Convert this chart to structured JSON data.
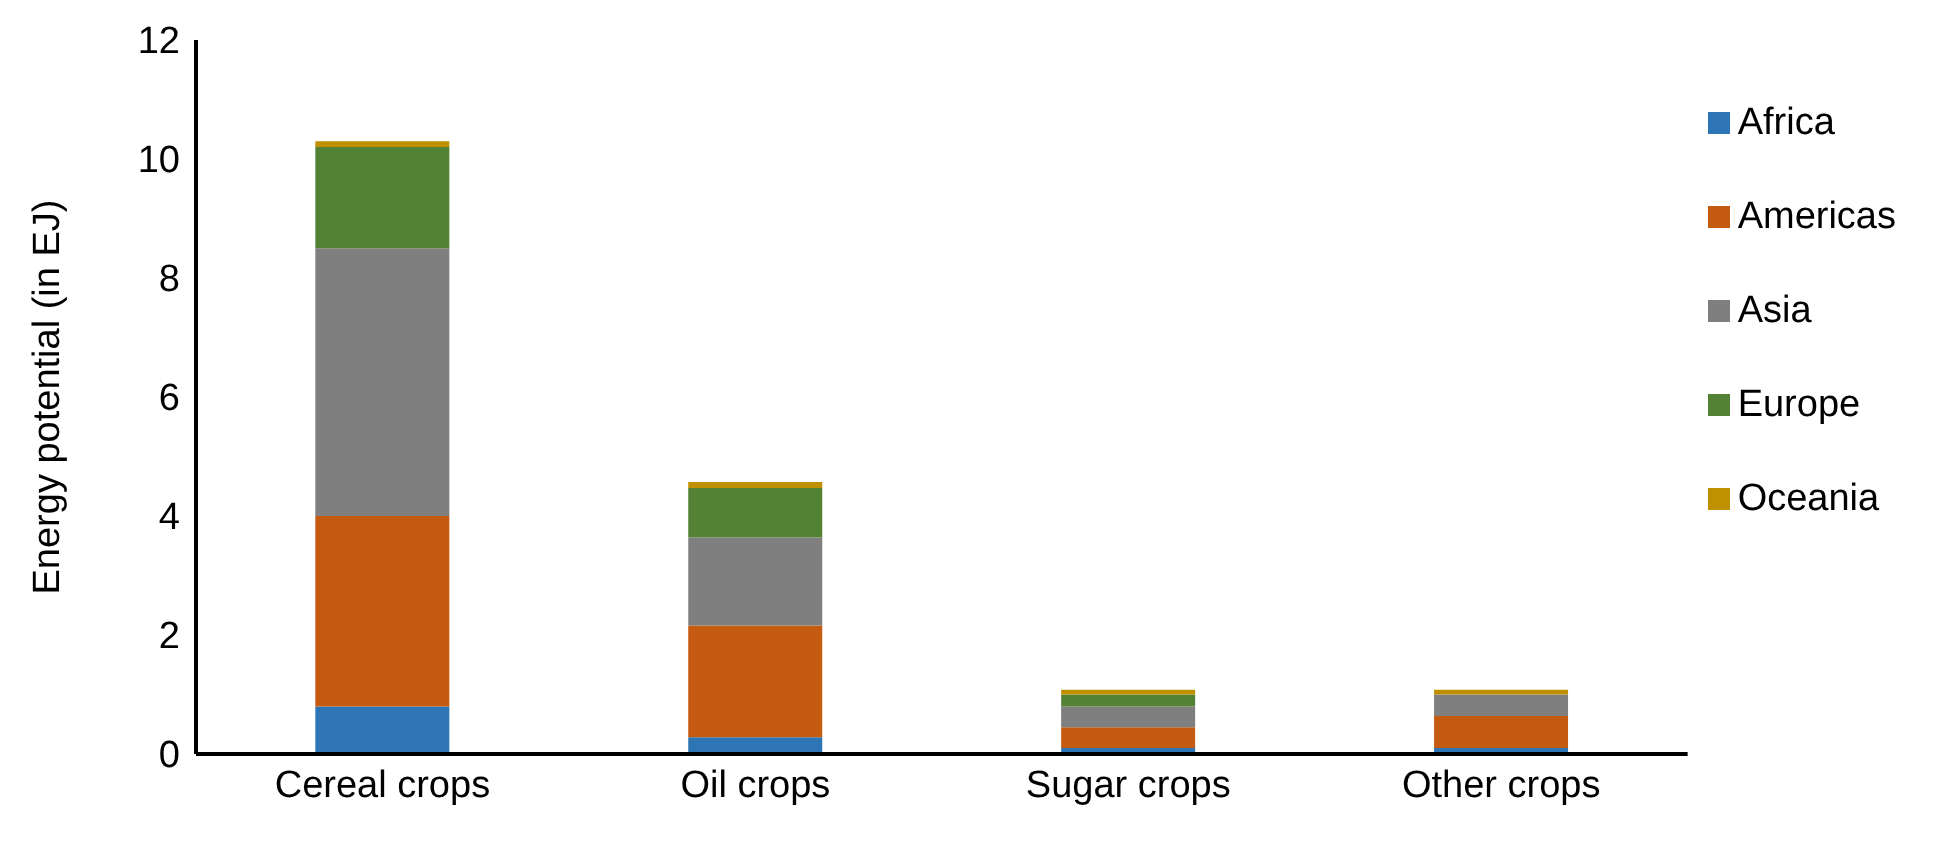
{
  "chart_data": {
    "type": "bar",
    "stacked": true,
    "ylabel": "Energy potential (in EJ)",
    "categories": [
      "Cereal crops",
      "Oil crops",
      "Sugar crops",
      "Other crops"
    ],
    "series": [
      {
        "name": "Africa",
        "color": "#2e75b6",
        "values": [
          0.8,
          0.28,
          0.1,
          0.1
        ]
      },
      {
        "name": "Americas",
        "color": "#c55a11",
        "values": [
          3.2,
          1.88,
          0.35,
          0.54
        ]
      },
      {
        "name": "Asia",
        "color": "#7f7f7f",
        "values": [
          4.5,
          1.48,
          0.35,
          0.36
        ]
      },
      {
        "name": "Europe",
        "color": "#548235",
        "values": [
          1.7,
          0.83,
          0.2,
          0
        ]
      },
      {
        "name": "Oceania",
        "color": "#bf9000",
        "values": [
          0.1,
          0.1,
          0.08,
          0.08
        ]
      }
    ],
    "ylim": [
      0,
      12
    ],
    "yticks": [
      0,
      2,
      4,
      6,
      8,
      10,
      12
    ],
    "grid": false,
    "legend": "top right"
  }
}
